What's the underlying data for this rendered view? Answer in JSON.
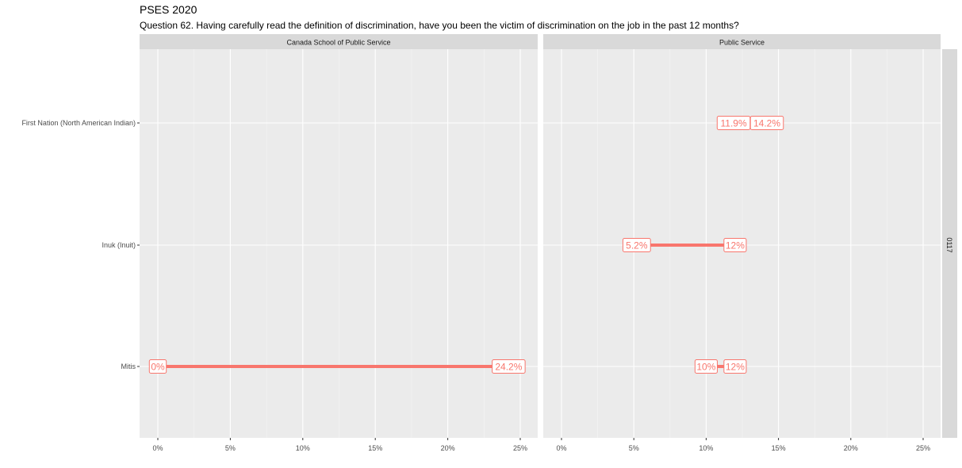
{
  "chart_data": {
    "type": "dumbbell",
    "title": "PSES 2020",
    "subtitle": "Question 62. Having carefully read the definition of discrimination, have you been the victim of discrimination on the job in the past 12 months?",
    "categories": [
      "First Nation (North American Indian)",
      "Inuk (Inuit)",
      "Mitis"
    ],
    "xticks": [
      "0%",
      "5%",
      "10%",
      "15%",
      "20%",
      "25%"
    ],
    "xlim": [
      0,
      25
    ],
    "row_strip": "0117",
    "grid": true,
    "color": "#F8766D",
    "panels": [
      {
        "name": "Canada School of Public Service",
        "points": [
          {
            "category": "Mitis",
            "low": 0,
            "high": 24.2,
            "low_label": "0%",
            "high_label": "24.2%"
          }
        ]
      },
      {
        "name": "Public Service",
        "points": [
          {
            "category": "First Nation (North American Indian)",
            "low": 11.9,
            "high": 14.2,
            "low_label": "11.9%",
            "high_label": "14.2%"
          },
          {
            "category": "Inuk (Inuit)",
            "low": 5.2,
            "high": 12,
            "low_label": "5.2%",
            "high_label": "12%"
          },
          {
            "category": "Mitis",
            "low": 10,
            "high": 12,
            "low_label": "10%",
            "high_label": "12%"
          }
        ]
      }
    ]
  }
}
